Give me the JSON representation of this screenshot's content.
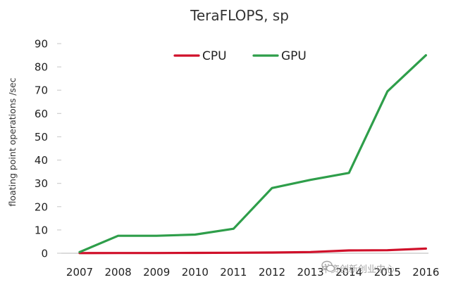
{
  "chart_data": {
    "type": "line",
    "title": "TeraFLOPS, sp",
    "xlabel": "",
    "ylabel": "floating point operations /sec",
    "x": [
      "2007",
      "2008",
      "2009",
      "2010",
      "2011",
      "2012",
      "2013",
      "2014",
      "2015",
      "2016"
    ],
    "ylim": [
      0,
      90
    ],
    "yticks": [
      0,
      10,
      20,
      30,
      40,
      50,
      60,
      70,
      80,
      90
    ],
    "grid": false,
    "legend_position": "top-center",
    "series": [
      {
        "name": "CPU",
        "color": "#d0102a",
        "values": [
          0.05,
          0.1,
          0.1,
          0.15,
          0.2,
          0.3,
          0.5,
          1.2,
          1.3,
          2.0
        ]
      },
      {
        "name": "GPU",
        "color": "#2e9e4a",
        "values": [
          0.5,
          7.5,
          7.5,
          8.0,
          10.5,
          28.0,
          31.5,
          34.5,
          69.5,
          85.0
        ]
      }
    ]
  },
  "watermark": {
    "text": "中资创新创业中心",
    "icon": "wechat-icon"
  }
}
